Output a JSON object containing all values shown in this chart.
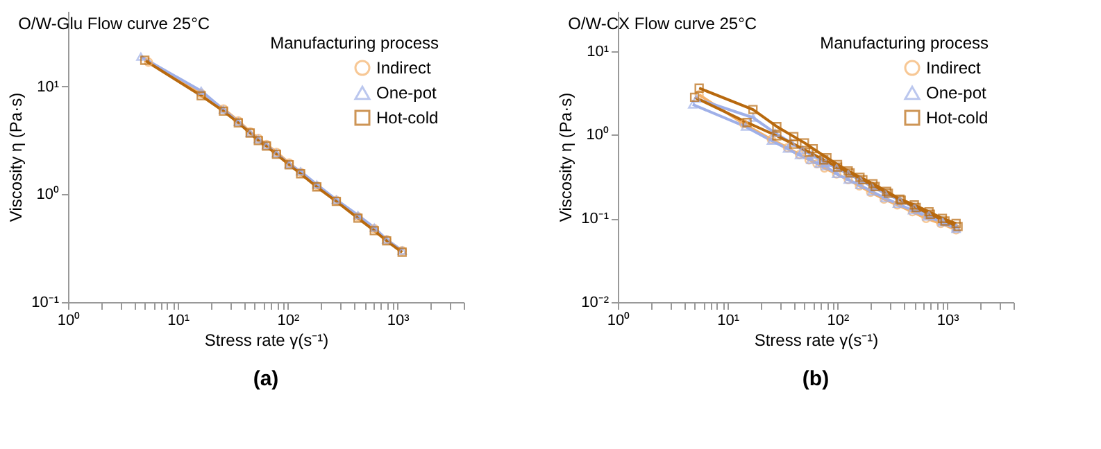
{
  "chart_data": [
    {
      "type": "line",
      "title": "O/W-Glu  Flow curve 25°C",
      "xlabel": "Stress rate γ(s⁻¹)",
      "ylabel": "Viscosity η (Pa·s)",
      "legend_title": "Manufacturing process",
      "legend": "top right",
      "log": "xy",
      "grid": false,
      "annotations": [
        "(a)"
      ],
      "xlim": [
        1,
        4000
      ],
      "xticks": [
        {
          "value": 1,
          "label": "10⁰"
        },
        {
          "value": 2,
          "label": null
        },
        {
          "value": 3,
          "label": null
        },
        {
          "value": 4,
          "label": null
        },
        {
          "value": 5,
          "label": null
        },
        {
          "value": 6,
          "label": null
        },
        {
          "value": 7,
          "label": null
        },
        {
          "value": 8,
          "label": null
        },
        {
          "value": 9,
          "label": null
        },
        {
          "value": 10,
          "label": "10¹"
        },
        {
          "value": 20,
          "label": null
        },
        {
          "value": 30,
          "label": null
        },
        {
          "value": 40,
          "label": null
        },
        {
          "value": 50,
          "label": null
        },
        {
          "value": 60,
          "label": null
        },
        {
          "value": 70,
          "label": null
        },
        {
          "value": 80,
          "label": null
        },
        {
          "value": 90,
          "label": null
        },
        {
          "value": 100,
          "label": "10²"
        },
        {
          "value": 200,
          "label": null
        },
        {
          "value": 300,
          "label": null
        },
        {
          "value": 400,
          "label": null
        },
        {
          "value": 500,
          "label": null
        },
        {
          "value": 600,
          "label": null
        },
        {
          "value": 700,
          "label": null
        },
        {
          "value": 800,
          "label": null
        },
        {
          "value": 900,
          "label": null
        },
        {
          "value": 1000,
          "label": "10³"
        },
        {
          "value": 2000,
          "label": null
        },
        {
          "value": 3000,
          "label": null
        },
        {
          "value": 4000,
          "label": null
        }
      ],
      "ylim": [
        0.1,
        50
      ],
      "yticks": [
        {
          "value": 0.1,
          "label": "10⁻¹"
        },
        {
          "value": 1,
          "label": "10⁰"
        },
        {
          "value": 10,
          "label": "10¹"
        }
      ],
      "series": [
        {
          "name": "Indirect",
          "color": "#f5b26b",
          "marker": "circle",
          "x": [
            5.4,
            16.3,
            26,
            35.5,
            45.5,
            54,
            64,
            79,
            103,
            131,
            184,
            277,
            436,
            614,
            795,
            1100
          ],
          "values": [
            16.8,
            8.6,
            6.2,
            4.8,
            3.8,
            3.3,
            2.9,
            2.45,
            1.95,
            1.6,
            1.2,
            0.88,
            0.62,
            0.48,
            0.38,
            0.3
          ]
        },
        {
          "name": "One-pot",
          "color": "#9fb0e8",
          "marker": "triangle",
          "x": [
            4.6,
            16.3,
            26,
            35.5,
            45.5,
            54,
            64,
            79,
            103,
            131,
            184,
            277,
            436,
            614,
            795,
            1100
          ],
          "values": [
            18.9,
            9.1,
            6.1,
            4.7,
            3.7,
            3.25,
            2.85,
            2.4,
            1.9,
            1.63,
            1.23,
            0.89,
            0.64,
            0.49,
            0.38,
            0.3
          ]
        },
        {
          "name": "Hot-cold",
          "color": "#b8690e",
          "marker": "square",
          "x": [
            5,
            16.3,
            26,
            35.5,
            45.5,
            54,
            64,
            79,
            103,
            131,
            184,
            277,
            436,
            614,
            795,
            1100
          ],
          "values": [
            17.5,
            8.2,
            5.9,
            4.6,
            3.7,
            3.15,
            2.8,
            2.35,
            1.88,
            1.55,
            1.17,
            0.86,
            0.6,
            0.46,
            0.37,
            0.29
          ]
        }
      ]
    },
    {
      "type": "line",
      "title": "O/W-CX  Flow curve 25°C",
      "xlabel": "Stress rate γ(s⁻¹)",
      "ylabel": "Viscosity η (Pa·s)",
      "legend_title": "Manufacturing process",
      "legend": "top right",
      "log": "xy",
      "grid": false,
      "annotations": [
        "(b)"
      ],
      "xlim": [
        1,
        4000
      ],
      "xticks": [
        {
          "value": 1,
          "label": "10⁰"
        },
        {
          "value": 2,
          "label": null
        },
        {
          "value": 3,
          "label": null
        },
        {
          "value": 4,
          "label": null
        },
        {
          "value": 5,
          "label": null
        },
        {
          "value": 6,
          "label": null
        },
        {
          "value": 7,
          "label": null
        },
        {
          "value": 8,
          "label": null
        },
        {
          "value": 9,
          "label": null
        },
        {
          "value": 10,
          "label": "10¹"
        },
        {
          "value": 20,
          "label": null
        },
        {
          "value": 30,
          "label": null
        },
        {
          "value": 40,
          "label": null
        },
        {
          "value": 50,
          "label": null
        },
        {
          "value": 60,
          "label": null
        },
        {
          "value": 70,
          "label": null
        },
        {
          "value": 80,
          "label": null
        },
        {
          "value": 90,
          "label": null
        },
        {
          "value": 100,
          "label": "10²"
        },
        {
          "value": 200,
          "label": null
        },
        {
          "value": 300,
          "label": null
        },
        {
          "value": 400,
          "label": null
        },
        {
          "value": 500,
          "label": null
        },
        {
          "value": 600,
          "label": null
        },
        {
          "value": 700,
          "label": null
        },
        {
          "value": 800,
          "label": null
        },
        {
          "value": 900,
          "label": null
        },
        {
          "value": 1000,
          "label": "10³"
        },
        {
          "value": 2000,
          "label": null
        },
        {
          "value": 3000,
          "label": null
        },
        {
          "value": 4000,
          "label": null
        }
      ],
      "ylim": [
        0.01,
        30
      ],
      "yticks": [
        {
          "value": 0.01,
          "label": "10⁻²"
        },
        {
          "value": 0.1,
          "label": "10⁻¹"
        },
        {
          "value": 1,
          "label": "10⁰"
        },
        {
          "value": 10,
          "label": "10¹"
        }
      ],
      "series": [
        {
          "name": "Indirect",
          "color": "#f5b26b",
          "marker": "circle",
          "x": [
            5.5,
            14,
            25,
            35,
            45,
            55,
            65,
            76,
            98,
            125,
            158,
            200,
            265,
            350,
            480,
            640,
            870,
            1200
          ],
          "values": [
            3.0,
            1.35,
            0.88,
            0.7,
            0.58,
            0.5,
            0.45,
            0.4,
            0.34,
            0.29,
            0.245,
            0.205,
            0.17,
            0.145,
            0.12,
            0.1,
            0.087,
            0.073
          ]
        },
        {
          "name": "One-pot",
          "color": "#9fb0e8",
          "marker": "triangle",
          "x": [
            5.2,
            17,
            27,
            38,
            48,
            58,
            70,
            78,
            98,
            125,
            160,
            205,
            270,
            370,
            500,
            680,
            900,
            1200
          ],
          "values": [
            2.7,
            1.6,
            1.05,
            0.8,
            0.66,
            0.58,
            0.5,
            0.46,
            0.4,
            0.34,
            0.29,
            0.24,
            0.2,
            0.165,
            0.135,
            0.11,
            0.093,
            0.078
          ]
        },
        {
          "name": "One-pot",
          "color": "#9fb0e8",
          "marker": "triangle",
          "x": [
            4.8,
            14.5,
            25,
            35,
            45,
            57,
            68,
            78,
            98,
            125,
            160,
            205,
            270,
            350,
            480,
            650,
            900,
            1200
          ],
          "values": [
            2.3,
            1.25,
            0.85,
            0.68,
            0.57,
            0.5,
            0.45,
            0.42,
            0.34,
            0.29,
            0.25,
            0.21,
            0.175,
            0.15,
            0.125,
            0.105,
            0.09,
            0.075
          ]
        },
        {
          "name": "Hot-cold",
          "color": "#b8690e",
          "marker": "square",
          "x": [
            5.5,
            17,
            28,
            40,
            50,
            60,
            80,
            100,
            125,
            160,
            210,
            280,
            370,
            500,
            680,
            900,
            1200
          ],
          "values": [
            3.6,
            2.0,
            1.25,
            0.95,
            0.8,
            0.68,
            0.53,
            0.44,
            0.37,
            0.31,
            0.26,
            0.21,
            0.17,
            0.145,
            0.12,
            0.1,
            0.087
          ]
        },
        {
          "name": "Hot-cold",
          "color": "#b8690e",
          "marker": "square",
          "x": [
            5,
            15,
            28,
            40,
            55,
            75,
            100,
            130,
            170,
            220,
            290,
            380,
            520,
            700,
            950,
            1250
          ],
          "values": [
            2.8,
            1.4,
            0.97,
            0.77,
            0.62,
            0.5,
            0.41,
            0.35,
            0.29,
            0.24,
            0.2,
            0.165,
            0.135,
            0.112,
            0.093,
            0.08
          ]
        }
      ]
    }
  ]
}
